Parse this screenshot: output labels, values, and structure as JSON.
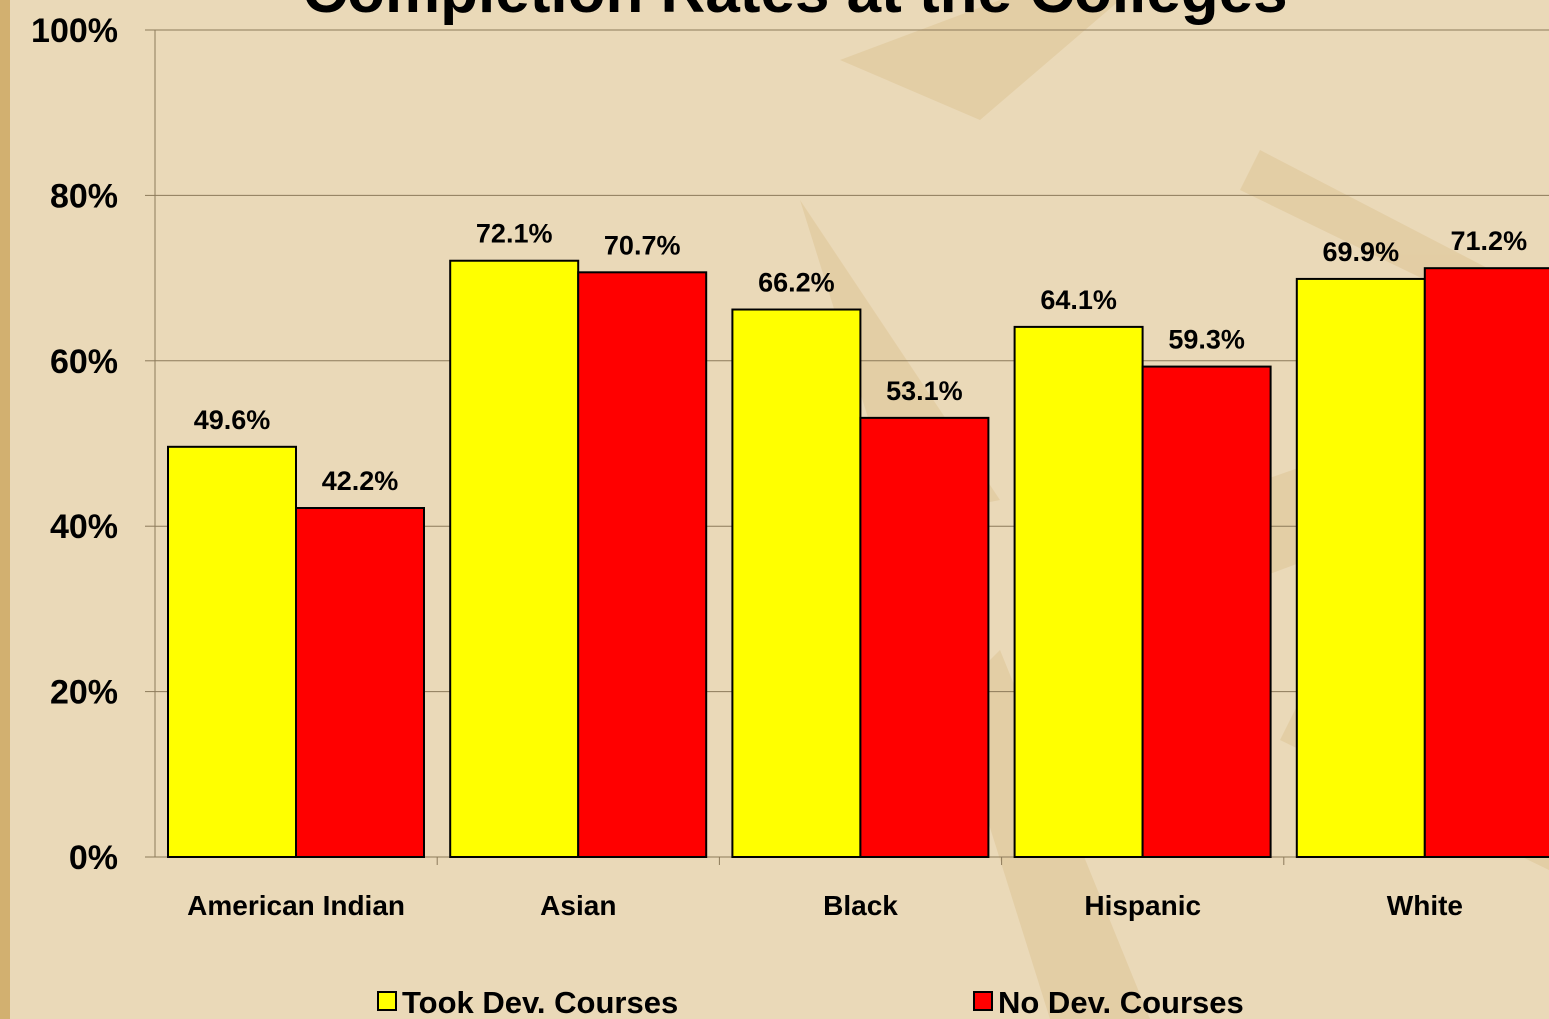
{
  "chart_data": {
    "type": "bar",
    "title": "Completion Rates at the Colleges",
    "categories": [
      "American Indian",
      "Asian",
      "Black",
      "Hispanic",
      "White"
    ],
    "series": [
      {
        "name": "Took Dev. Courses",
        "color": "#ffff00",
        "values": [
          49.6,
          72.1,
          66.2,
          64.1,
          69.9
        ],
        "value_labels": [
          "49.6%",
          "72.1%",
          "66.2%",
          "64.1%",
          "69.9%"
        ]
      },
      {
        "name": "No Dev. Courses",
        "color": "#ff0000",
        "values": [
          42.2,
          70.7,
          53.1,
          59.3,
          71.2
        ],
        "value_labels": [
          "42.2%",
          "70.7%",
          "53.1%",
          "59.3%",
          "71.2%"
        ]
      }
    ],
    "ylim": [
      0,
      100
    ],
    "yticks": [
      {
        "value": 0,
        "label": "0%"
      },
      {
        "value": 20,
        "label": "20%"
      },
      {
        "value": 40,
        "label": "40%"
      },
      {
        "value": 60,
        "label": "60%"
      },
      {
        "value": 80,
        "label": "80%"
      },
      {
        "value": 100,
        "label": "100%"
      }
    ],
    "grid": true,
    "legend": "bottom"
  }
}
